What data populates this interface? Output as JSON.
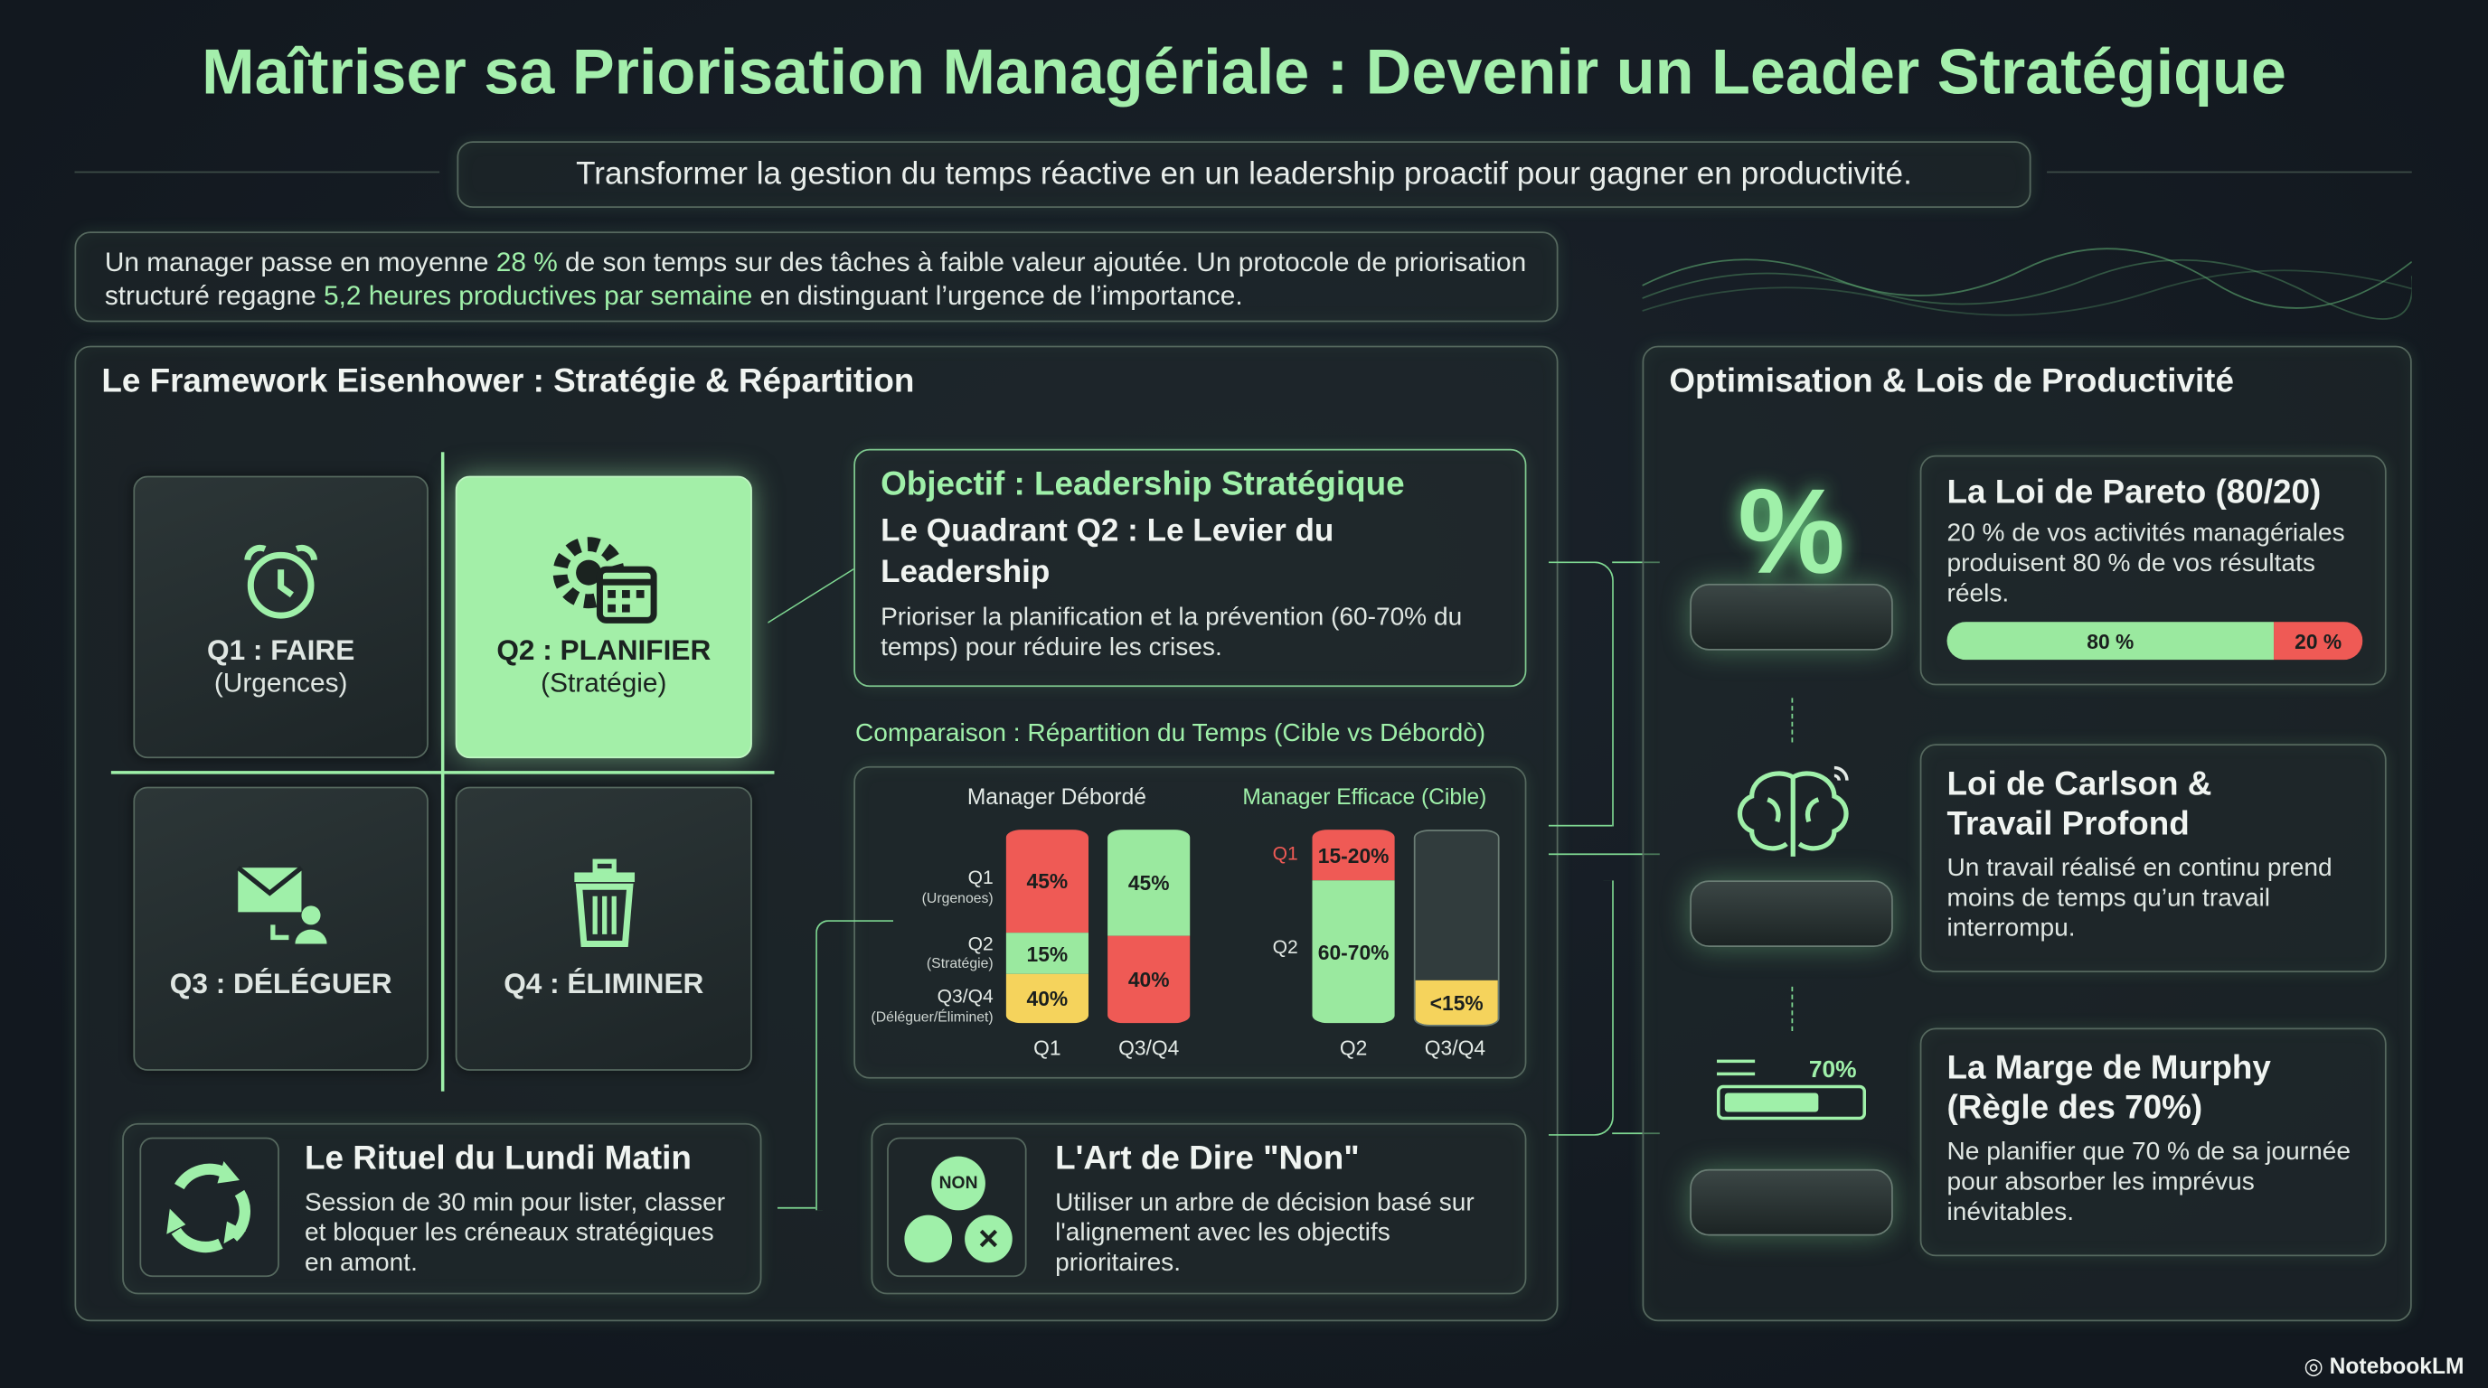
{
  "header": {
    "title": "Maîtriser sa Priorisation Managériale : Devenir un Leader Stratégique",
    "subtitle": "Transformer la gestion du temps réactive en un leadership proactif pour gagner en productivité."
  },
  "intro": {
    "parts": [
      "Un manager passe en moyenne ",
      "28 %",
      " de son temps sur des tâches à faible valeur ajoutée. Un protocole de priorisation structuré regagne ",
      "5,2 heures productives par semaine",
      " en distinguant l’urgence de l’importance."
    ]
  },
  "framework": {
    "title": "Le Framework Eisenhower : Stratégie & Répartition",
    "quadrants": [
      {
        "label": "Q1 : FAIRE",
        "sub": "(Urgences)"
      },
      {
        "label": "Q2 : PLANIFIER",
        "sub": "(Stratégie)"
      },
      {
        "label": "Q3 : DÉLÉGUER"
      },
      {
        "label": "Q4 : ÉLIMINER"
      }
    ],
    "objective": {
      "kicker": "Objectif : Leadership Stratégique",
      "title": "Le Quadrant Q2 : Le Levier du Leadership",
      "text": "Prioriser la planification et la prévention (60-70% du temps) pour réduire les crises."
    },
    "comparison": {
      "title": "Comparaison : Répartition du Temps (Cible vs Débordò)",
      "groups": [
        {
          "name": "Manager Débordé",
          "row_labels": [
            {
              "label": "Q1",
              "sub": "(Urgenoes)"
            },
            {
              "label": "Q2",
              "sub": "(Stratégie)"
            },
            {
              "label": "Q3/Q4",
              "sub": "(Déléguer/Éliminet)"
            }
          ],
          "columns": [
            {
              "name": "Q1",
              "segments": [
                "45%",
                "15%",
                "40%"
              ]
            },
            {
              "name": "Q3/Q4",
              "segments": [
                "45%",
                "40%"
              ]
            }
          ]
        },
        {
          "name": "Manager Efficace (Cible)",
          "row_labels": [
            {
              "label": "Q1"
            },
            {
              "label": "Q2"
            }
          ],
          "columns": [
            {
              "name": "Q2",
              "segments": [
                "15-20%",
                "60-70%"
              ]
            },
            {
              "name": "Q3/Q4",
              "segments": [
                "<15%"
              ]
            }
          ]
        }
      ]
    },
    "cards": [
      {
        "title": "Le Rituel du Lundi Matin",
        "text": "Session de 30 min pour lister, classer et bloquer les créneaux stratégiques en amont."
      },
      {
        "title": "L'Art de Dire \"Non\"",
        "text": "Utiliser un arbre de décision basé sur l'alignement avec les objectifs prioritaires.",
        "icon_label": "NON"
      }
    ]
  },
  "optimisation": {
    "title": "Optimisation & Lois de Productivité",
    "laws": [
      {
        "icon_label": "%",
        "title": "La Loi de Pareto (80/20)",
        "text": "20 % de vos activités managériales produisent 80 % de vos résultats réels.",
        "bar": [
          "80 %",
          "20 %"
        ]
      },
      {
        "title": "Loi de Carlson & Travail Profond",
        "text": "Un travail réalisé en continu prend moins de temps qu’un travail interrompu."
      },
      {
        "icon_label": "70%",
        "title": "La Marge de Murphy (Règle des 70%)",
        "text": "Ne planifier que 70 % de sa journée pour absorber les imprévus inévitables."
      }
    ]
  },
  "footer": {
    "brand": "NotebookLM"
  }
}
